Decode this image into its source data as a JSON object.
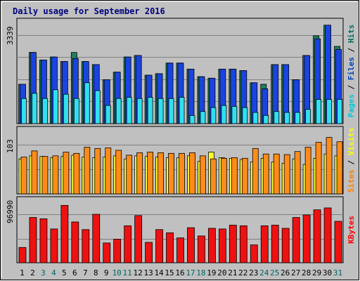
{
  "chart_data": [
    {
      "type": "bar",
      "title": "Daily usage for September 2016",
      "x": [
        1,
        2,
        3,
        4,
        5,
        6,
        7,
        8,
        9,
        10,
        11,
        12,
        13,
        14,
        15,
        16,
        17,
        18,
        19,
        20,
        21,
        22,
        23,
        24,
        25,
        26,
        27,
        28,
        29,
        30,
        31
      ],
      "x_label_colors": {
        "weekday": "#000000",
        "weekend": "#006666"
      },
      "weekend_days": [
        3,
        4,
        10,
        11,
        17,
        18,
        24,
        25,
        31
      ],
      "panels": [
        {
          "name": "hits-files-pages",
          "ymax_label": "3339",
          "ylim": [
            0,
            3339
          ],
          "legend": [
            {
              "label": "Pages",
              "color": "#00c8d8"
            },
            {
              "label": "Files",
              "color": "#0040c0"
            },
            {
              "label": "Hits",
              "color": "#007060"
            }
          ],
          "series": [
            {
              "name": "Hits",
              "color": "#20805c",
              "values": [
                1300,
                2350,
                2100,
                2200,
                2050,
                2350,
                2050,
                1950,
                1450,
                1700,
                2200,
                2250,
                1600,
                1650,
                2000,
                2000,
                1800,
                1550,
                1500,
                1800,
                1800,
                1750,
                1350,
                1300,
                1950,
                1950,
                1450,
                2250,
                2900,
                3250,
                2550
              ]
            },
            {
              "name": "Files",
              "color": "#1a44e0",
              "values": [
                1300,
                2350,
                2100,
                2200,
                2050,
                2150,
                2050,
                1950,
                1450,
                1700,
                2200,
                2250,
                1600,
                1650,
                2000,
                2000,
                1800,
                1550,
                1500,
                1800,
                1800,
                1750,
                1350,
                1150,
                1950,
                1950,
                1450,
                2250,
                2800,
                3250,
                2450
              ]
            },
            {
              "name": "Pages",
              "color": "#30e0f0",
              "values": [
                830,
                1000,
                830,
                1120,
                970,
                830,
                1350,
                1090,
                600,
                830,
                870,
                830,
                870,
                830,
                830,
                870,
                270,
                400,
                530,
                600,
                570,
                530,
                370,
                270,
                400,
                370,
                370,
                470,
                800,
                800,
                800
              ]
            }
          ]
        },
        {
          "name": "visits-sites",
          "ymax_label": "103",
          "ylim": [
            0,
            103
          ],
          "legend": [
            {
              "label": "Sites",
              "color": "#ff8000"
            },
            {
              "label": "Visits",
              "color": "#ffff00"
            }
          ],
          "series": [
            {
              "name": "Visits",
              "color": "#ffff30",
              "values": [
                57,
                62,
                61,
                59,
                61,
                63,
                60,
                59,
                60,
                62,
                57,
                62,
                61,
                60,
                59,
                59,
                62,
                53,
                68,
                59,
                58,
                56,
                52,
                58,
                52,
                50,
                57,
                48,
                58,
                65,
                62
              ]
            },
            {
              "name": "Sites",
              "color": "#ff8c1a",
              "values": [
                60,
                70,
                61,
                62,
                68,
                66,
                76,
                74,
                75,
                71,
                63,
                67,
                68,
                67,
                66,
                66,
                67,
                62,
                57,
                58,
                59,
                58,
                74,
                65,
                65,
                64,
                69,
                76,
                84,
                92,
                85
              ]
            }
          ]
        },
        {
          "name": "kbytes",
          "ymax_label": "96990",
          "ylim": [
            0,
            96990
          ],
          "legend": [
            {
              "label": "KBytes",
              "color": "#ff0000"
            }
          ],
          "series": [
            {
              "name": "KBytes",
              "color": "#ee1111",
              "values": [
                24000,
                71000,
                69000,
                53000,
                90000,
                64000,
                52000,
                76000,
                31000,
                37000,
                58000,
                74000,
                32000,
                52000,
                47000,
                39000,
                55000,
                42000,
                54000,
                53000,
                59000,
                58000,
                28000,
                58000,
                59000,
                54000,
                71000,
                75000,
                83000,
                86000,
                65000
              ]
            }
          ]
        }
      ]
    }
  ]
}
